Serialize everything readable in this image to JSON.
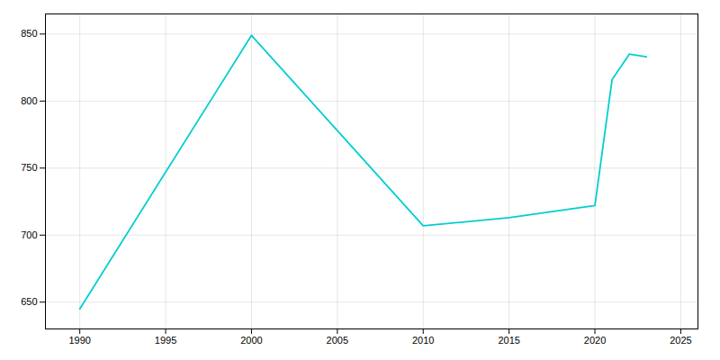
{
  "chart_data": {
    "type": "line",
    "x": [
      1990,
      2000,
      2010,
      2015,
      2020,
      2021,
      2022,
      2023
    ],
    "values": [
      645,
      849,
      707,
      713,
      722,
      816,
      835,
      833
    ],
    "color": "#00CED1",
    "xlim": [
      1988,
      2026
    ],
    "ylim": [
      630,
      865
    ],
    "xticks": [
      1990,
      1995,
      2000,
      2005,
      2010,
      2015,
      2020,
      2025
    ],
    "yticks": [
      650,
      700,
      750,
      800,
      850
    ],
    "grid": true
  }
}
